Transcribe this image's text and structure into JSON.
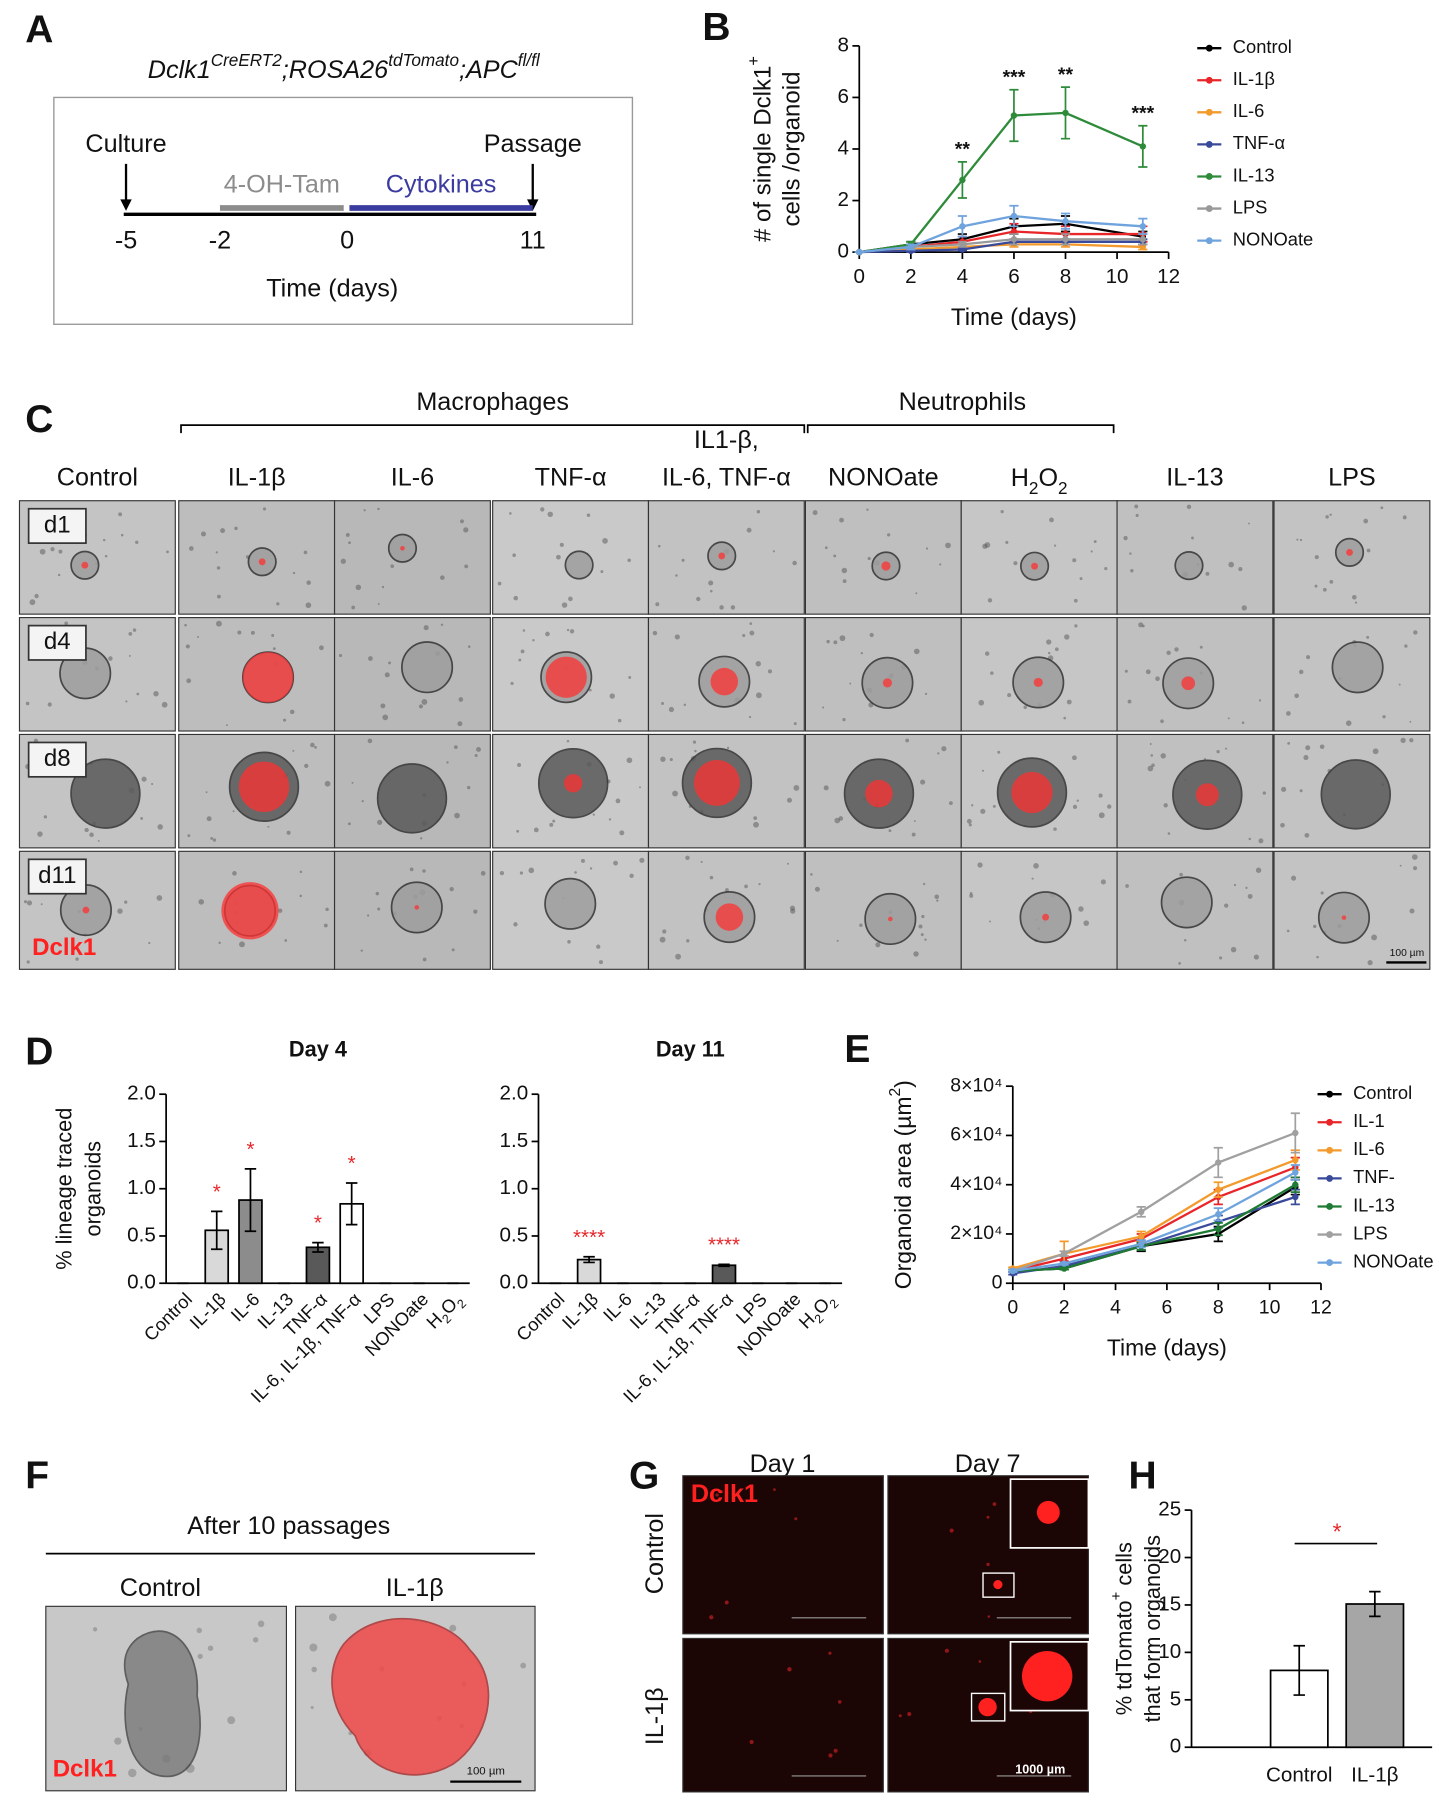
{
  "panel_letters": [
    "A",
    "B",
    "C",
    "D",
    "E",
    "F",
    "G",
    "H"
  ],
  "panel_A": {
    "genotype": [
      "Dclk1",
      "CreERT2",
      ";ROSA26",
      "tdTomato",
      ";APC",
      "fl/fl"
    ],
    "events": [
      "Culture",
      "Passage"
    ],
    "treatments": [
      "4-OH-Tam",
      "Cytokines"
    ],
    "timepoints": [
      -5,
      -2,
      0,
      11
    ],
    "xlabel": "Time (days)"
  },
  "chart_data": [
    {
      "type": "line",
      "x": [
        0,
        2,
        4,
        6,
        8,
        11
      ],
      "xlim": [
        0,
        12
      ],
      "xticks": [
        0,
        2,
        4,
        6,
        8,
        10,
        12
      ],
      "ylim": [
        0,
        8
      ],
      "yticks": [
        0,
        2,
        4,
        6,
        8
      ],
      "xlabel": "Time (days)",
      "ylabel": [
        [
          "# of single Dclk1",
          "+"
        ],
        "cells /organoid"
      ],
      "series": [
        {
          "name": "Control",
          "color": "#000000",
          "values": [
            0,
            0.3,
            0.5,
            1.0,
            1.1,
            0.6
          ],
          "errors": [
            0,
            0.1,
            0.2,
            0.3,
            0.3,
            0.2
          ]
        },
        {
          "name": "IL-1β",
          "color": "#e8262a",
          "values": [
            0,
            0.2,
            0.4,
            0.8,
            0.7,
            0.7
          ],
          "errors": [
            0,
            0.1,
            0.2,
            0.3,
            0.3,
            0.3
          ]
        },
        {
          "name": "IL-6",
          "color": "#f39a2c",
          "values": [
            0,
            0.1,
            0.2,
            0.3,
            0.3,
            0.2
          ],
          "errors": [
            0,
            0.05,
            0.1,
            0.1,
            0.1,
            0.1
          ]
        },
        {
          "name": "TNF-α",
          "color": "#3a4a9a",
          "values": [
            0,
            0.05,
            0.1,
            0.4,
            0.4,
            0.4
          ],
          "errors": [
            0,
            0.05,
            0.05,
            0.1,
            0.1,
            0.1
          ]
        },
        {
          "name": "IL-13",
          "color": "#2e8b3a",
          "values": [
            0,
            0.3,
            2.8,
            5.3,
            5.4,
            4.1
          ],
          "errors": [
            0,
            0.1,
            0.7,
            1.0,
            1.0,
            0.8
          ]
        },
        {
          "name": "LPS",
          "color": "#999999",
          "values": [
            0,
            0.2,
            0.3,
            0.5,
            0.5,
            0.5
          ],
          "errors": [
            0,
            0.1,
            0.1,
            0.2,
            0.2,
            0.2
          ]
        },
        {
          "name": "NONOate",
          "color": "#6fa3dd",
          "values": [
            0,
            0.2,
            1.0,
            1.4,
            1.2,
            1.0
          ],
          "errors": [
            0,
            0.1,
            0.4,
            0.4,
            0.3,
            0.3
          ]
        }
      ],
      "annotations": [
        {
          "x": 4,
          "text": "**"
        },
        {
          "x": 6,
          "text": "***"
        },
        {
          "x": 8,
          "text": "**"
        },
        {
          "x": 11,
          "text": "***"
        }
      ]
    },
    {
      "type": "bar",
      "title": "Day 4",
      "categories": [
        "Control",
        "IL-1β",
        "IL-6",
        "IL-13",
        "TNF-α",
        "IL-6, IL-1β, TNF-α",
        "LPS",
        "NONOate",
        [
          "H",
          "2",
          "O",
          "2"
        ]
      ],
      "values": [
        0,
        0.56,
        0.88,
        0,
        0.38,
        0.84,
        0,
        0,
        0
      ],
      "errors": [
        0,
        0.2,
        0.33,
        0,
        0.05,
        0.22,
        0,
        0,
        0
      ],
      "colors": [
        "#ffffff",
        "#d9d9d9",
        "#8c8c8c",
        "#ffffff",
        "#595959",
        "#ffffff",
        "#ffffff",
        "#ffffff",
        "#ffffff"
      ],
      "significance": [
        null,
        "*",
        "*",
        null,
        "*",
        "*",
        null,
        null,
        null
      ],
      "ylim": [
        0,
        2
      ],
      "yticks": [
        {
          "value": 0,
          "label": "0.0"
        },
        0.5,
        {
          "value": 1,
          "label": "1.0"
        },
        1.5,
        {
          "value": 2,
          "label": "2.0"
        }
      ],
      "ylabel": [
        "% lineage traced",
        "organoids"
      ]
    },
    {
      "type": "bar",
      "title": "Day 11",
      "categories": [
        "Control",
        "IL-1β",
        "IL-6",
        "IL-13",
        "TNF-α",
        "IL-6, IL-1β, TNF-α",
        "LPS",
        "NONOate",
        [
          "H",
          "2",
          "O",
          "2"
        ]
      ],
      "values": [
        0,
        0.25,
        0,
        0,
        0,
        0.19,
        0,
        0,
        0
      ],
      "errors": [
        0,
        0.03,
        0,
        0,
        0,
        0.01,
        0,
        0,
        0
      ],
      "colors": [
        "#ffffff",
        "#d9d9d9",
        "#ffffff",
        "#ffffff",
        "#ffffff",
        "#595959",
        "#ffffff",
        "#ffffff",
        "#ffffff"
      ],
      "significance": [
        null,
        "****",
        null,
        null,
        null,
        "****",
        null,
        null,
        null
      ],
      "ylim": [
        0,
        2
      ],
      "yticks": [
        {
          "value": 0,
          "label": "0.0"
        },
        0.5,
        {
          "value": 1,
          "label": "1.0"
        },
        1.5,
        {
          "value": 2,
          "label": "2.0"
        }
      ]
    },
    {
      "type": "line",
      "x": [
        0,
        2,
        5,
        8,
        11
      ],
      "xlim": [
        0,
        12
      ],
      "xticks": [
        0,
        2,
        4,
        6,
        8,
        10,
        12
      ],
      "ylim": [
        0,
        80000
      ],
      "yticks": [
        0,
        {
          "value": 20000,
          "label": "2×10⁴"
        },
        {
          "value": 40000,
          "label": "4×10⁴"
        },
        {
          "value": 60000,
          "label": "6×10⁴"
        },
        {
          "value": 80000,
          "label": "8×10⁴"
        }
      ],
      "xlabel": "Time (days)",
      "ylabel": [
        [
          "Organoid area (µm",
          "2",
          ")"
        ]
      ],
      "series": [
        {
          "name": "Control",
          "color": "#000000",
          "values": [
            5000,
            6000,
            15000,
            20000,
            39000
          ],
          "errors": [
            500,
            500,
            2000,
            3000,
            3000
          ]
        },
        {
          "name": "IL-1",
          "color": "#e8262a",
          "values": [
            5000,
            10000,
            18000,
            35000,
            47000
          ],
          "errors": [
            500,
            1000,
            2000,
            3000,
            4000
          ]
        },
        {
          "name": "IL-6",
          "color": "#f39a2c",
          "values": [
            6000,
            12000,
            19000,
            38000,
            50000
          ],
          "errors": [
            500,
            5000,
            2000,
            3000,
            4000
          ]
        },
        {
          "name": "TNF-",
          "color": "#3a4a9a",
          "values": [
            4000,
            7000,
            15000,
            25000,
            35000
          ],
          "errors": [
            500,
            500,
            1500,
            2500,
            3000
          ]
        },
        {
          "name": "IL-13",
          "color": "#1f7a33",
          "values": [
            5000,
            6000,
            15000,
            22000,
            40000
          ],
          "errors": [
            500,
            500,
            1500,
            2500,
            3000
          ]
        },
        {
          "name": "LPS",
          "color": "#a0a0a0",
          "values": [
            5000,
            12000,
            29000,
            49000,
            61000
          ],
          "errors": [
            500,
            1000,
            2000,
            6000,
            8000
          ]
        },
        {
          "name": "NONOate",
          "color": "#6fa3dd",
          "values": [
            5000,
            8000,
            16000,
            28000,
            45000
          ],
          "errors": [
            500,
            500,
            1500,
            2500,
            3000
          ]
        }
      ]
    },
    {
      "type": "bar",
      "categories": [
        "Control",
        "IL-1β"
      ],
      "values": [
        8.1,
        15.1
      ],
      "errors": [
        2.6,
        1.3
      ],
      "colors": [
        "#ffffff",
        "#a6a6a6"
      ],
      "significance": "*",
      "ylim": [
        0,
        25
      ],
      "yticks": [
        0,
        5,
        10,
        15,
        20,
        25
      ],
      "ylabel": [
        [
          "% tdTomato",
          "+",
          " cells"
        ],
        "that form organoids"
      ]
    }
  ],
  "panel_C": {
    "groups": [
      "Macrophages",
      "Neutrophils"
    ],
    "columns": [
      "Control",
      "IL-1β",
      "IL-6",
      "TNF-α",
      {
        "lines": [
          "IL1-β,",
          "IL-6, TNF-α"
        ]
      },
      "NONOate",
      [
        "H",
        "2",
        "O",
        "2"
      ],
      "IL-13",
      "LPS"
    ],
    "rows": [
      "d1",
      "d4",
      "d8",
      "d11"
    ],
    "stain": "Dclk1",
    "scale_bar": "100 µm"
  },
  "panel_F": {
    "title": "After 10 passages",
    "columns": [
      "Control",
      "IL-1β"
    ],
    "stain": "Dclk1",
    "scale_bar": "100 µm"
  },
  "panel_G": {
    "columns": [
      "Day 1",
      "Day 7"
    ],
    "rows": [
      "Control",
      "IL-1β"
    ],
    "stain": "Dclk1",
    "scale_bar": "1000 µm"
  }
}
